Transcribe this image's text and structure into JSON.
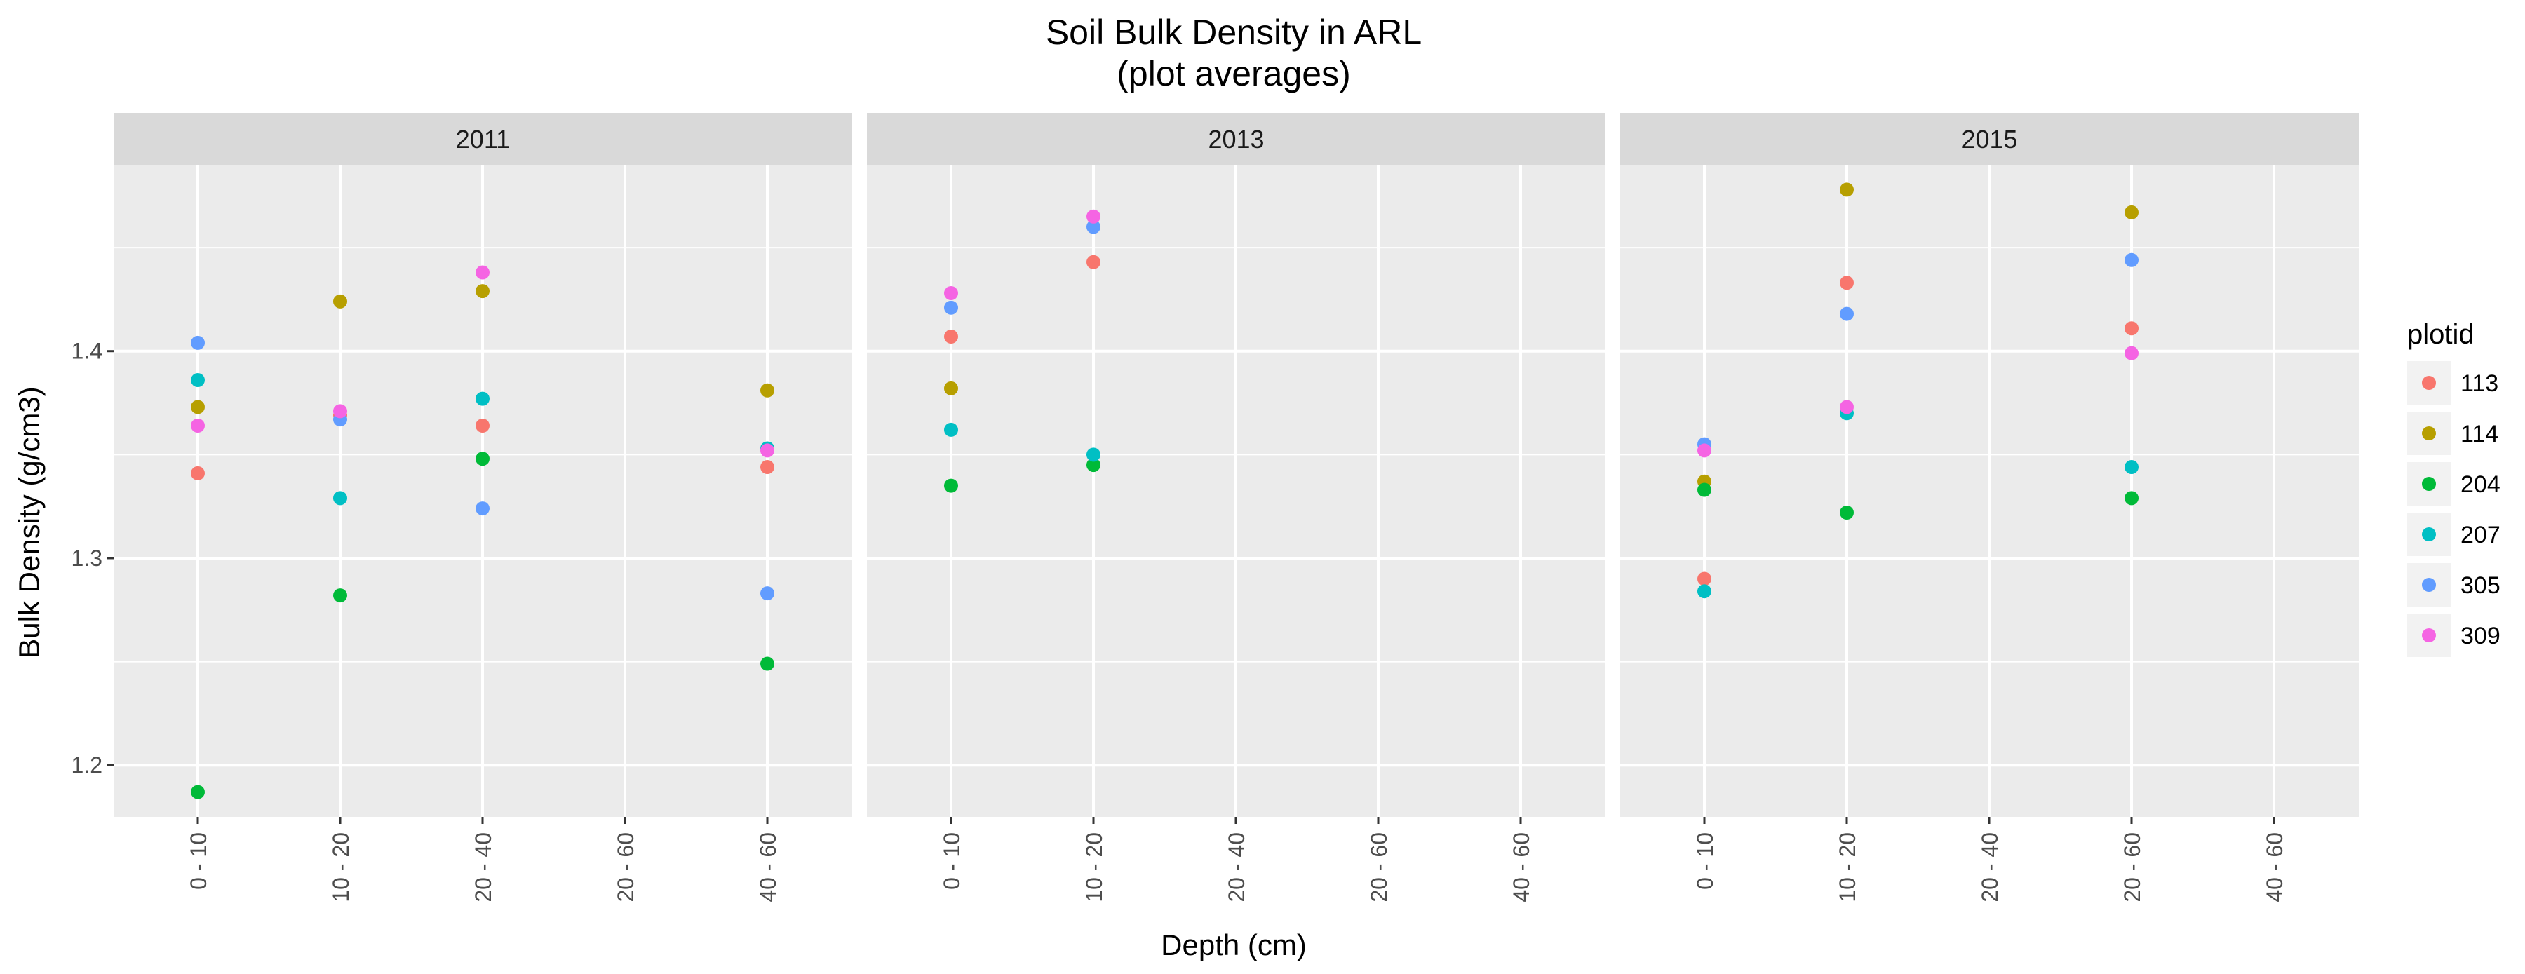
{
  "chart_data": {
    "type": "scatter",
    "title": "Soil Bulk Density in ARL",
    "subtitle": "(plot averages)",
    "xlabel": "Depth (cm)",
    "ylabel": "Bulk Density (g/cm3)",
    "ylim": [
      1.175,
      1.49
    ],
    "yticks": [
      1.2,
      1.3,
      1.4
    ],
    "grid": true,
    "legend": {
      "title": "plotid",
      "placement": "right",
      "entries": [
        {
          "name": "113",
          "color": "#F8766D"
        },
        {
          "name": "114",
          "color": "#B79F00"
        },
        {
          "name": "204",
          "color": "#00BA38"
        },
        {
          "name": "207",
          "color": "#00BFC4"
        },
        {
          "name": "305",
          "color": "#619CFF"
        },
        {
          "name": "309",
          "color": "#F564E3"
        }
      ]
    },
    "panels": [
      {
        "label": "2011",
        "categories": [
          "0 - 10",
          "10 - 20",
          "20 - 40",
          "20 - 60",
          "40 - 60"
        ],
        "series": [
          {
            "name": "113",
            "points": [
              [
                "0 - 10",
                1.341
              ],
              [
                "10 - 20",
                1.369
              ],
              [
                "20 - 40",
                1.364
              ],
              [
                "40 - 60",
                1.344
              ]
            ]
          },
          {
            "name": "114",
            "points": [
              [
                "0 - 10",
                1.373
              ],
              [
                "10 - 20",
                1.424
              ],
              [
                "20 - 40",
                1.429
              ],
              [
                "40 - 60",
                1.381
              ]
            ]
          },
          {
            "name": "204",
            "points": [
              [
                "0 - 10",
                1.187
              ],
              [
                "10 - 20",
                1.282
              ],
              [
                "20 - 40",
                1.348
              ],
              [
                "40 - 60",
                1.249
              ]
            ]
          },
          {
            "name": "207",
            "points": [
              [
                "0 - 10",
                1.386
              ],
              [
                "10 - 20",
                1.329
              ],
              [
                "20 - 40",
                1.377
              ],
              [
                "40 - 60",
                1.353
              ]
            ]
          },
          {
            "name": "305",
            "points": [
              [
                "0 - 10",
                1.404
              ],
              [
                "10 - 20",
                1.367
              ],
              [
                "20 - 40",
                1.324
              ],
              [
                "40 - 60",
                1.283
              ]
            ]
          },
          {
            "name": "309",
            "points": [
              [
                "0 - 10",
                1.364
              ],
              [
                "10 - 20",
                1.371
              ],
              [
                "20 - 40",
                1.438
              ],
              [
                "40 - 60",
                1.352
              ]
            ]
          }
        ]
      },
      {
        "label": "2013",
        "categories": [
          "0 - 10",
          "10 - 20",
          "20 - 40",
          "20 - 60",
          "40 - 60"
        ],
        "series": [
          {
            "name": "113",
            "points": [
              [
                "0 - 10",
                1.407
              ],
              [
                "10 - 20",
                1.443
              ]
            ]
          },
          {
            "name": "114",
            "points": [
              [
                "0 - 10",
                1.382
              ]
            ]
          },
          {
            "name": "204",
            "points": [
              [
                "0 - 10",
                1.335
              ],
              [
                "10 - 20",
                1.345
              ]
            ]
          },
          {
            "name": "207",
            "points": [
              [
                "0 - 10",
                1.362
              ],
              [
                "10 - 20",
                1.35
              ]
            ]
          },
          {
            "name": "305",
            "points": [
              [
                "0 - 10",
                1.421
              ],
              [
                "10 - 20",
                1.46
              ]
            ]
          },
          {
            "name": "309",
            "points": [
              [
                "0 - 10",
                1.428
              ],
              [
                "10 - 20",
                1.465
              ]
            ]
          }
        ]
      },
      {
        "label": "2015",
        "categories": [
          "0 - 10",
          "10 - 20",
          "20 - 40",
          "20 - 60",
          "40 - 60"
        ],
        "series": [
          {
            "name": "113",
            "points": [
              [
                "0 - 10",
                1.29
              ],
              [
                "10 - 20",
                1.433
              ],
              [
                "20 - 60",
                1.411
              ]
            ]
          },
          {
            "name": "114",
            "points": [
              [
                "0 - 10",
                1.337
              ],
              [
                "10 - 20",
                1.478
              ],
              [
                "20 - 60",
                1.467
              ]
            ]
          },
          {
            "name": "204",
            "points": [
              [
                "0 - 10",
                1.333
              ],
              [
                "10 - 20",
                1.322
              ],
              [
                "20 - 60",
                1.329
              ]
            ]
          },
          {
            "name": "207",
            "points": [
              [
                "0 - 10",
                1.284
              ],
              [
                "10 - 20",
                1.37
              ],
              [
                "20 - 60",
                1.344
              ]
            ]
          },
          {
            "name": "305",
            "points": [
              [
                "0 - 10",
                1.355
              ],
              [
                "10 - 20",
                1.418
              ],
              [
                "20 - 60",
                1.444
              ]
            ]
          },
          {
            "name": "309",
            "points": [
              [
                "0 - 10",
                1.352
              ],
              [
                "10 - 20",
                1.373
              ],
              [
                "20 - 60",
                1.399
              ]
            ]
          }
        ]
      }
    ]
  }
}
